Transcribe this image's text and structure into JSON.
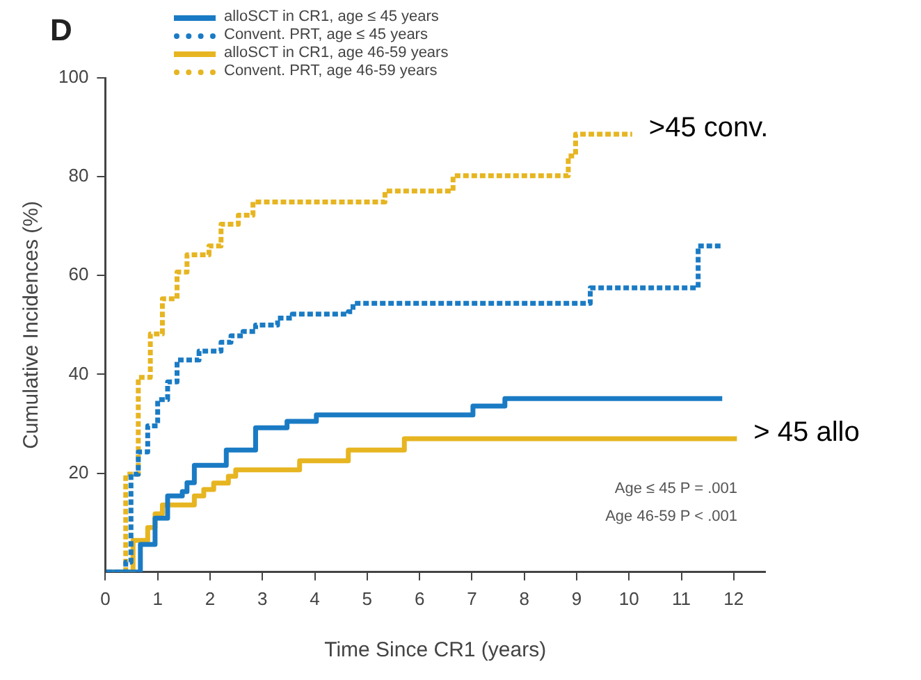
{
  "chart_data": {
    "type": "step",
    "xlabel": "Time Since CR1 (years)",
    "ylabel": "Cumulative Incidences (%)",
    "xlim": [
      0,
      12.6
    ],
    "xticks": [
      0,
      1,
      2,
      3,
      4,
      5,
      6,
      7,
      8,
      9,
      10,
      11,
      12
    ],
    "ylim": [
      0,
      100
    ],
    "yticks": [
      20,
      40,
      60,
      80,
      100
    ],
    "grid": false,
    "legend": "top left",
    "series": [
      {
        "name": "alloSCT in CR1, age ≤ 45 years",
        "color": "#1a7bc4",
        "line_style": "solid",
        "x": [
          0.02,
          0.67,
          0.95,
          1.19,
          1.47,
          1.56,
          1.7,
          2.31,
          2.87,
          3.47,
          4.03,
          7.02,
          7.63,
          11.78
        ],
        "values": [
          0,
          5.6,
          10.9,
          15.4,
          16.3,
          18.1,
          21.6,
          24.7,
          29.2,
          30.5,
          31.8,
          33.6,
          35.1,
          35.1
        ]
      },
      {
        "name": "Convent. PRT, age ≤ 45 years",
        "color": "#1a7bc4",
        "line_style": "dashed",
        "x": [
          0.02,
          0.39,
          0.49,
          0.63,
          0.81,
          1.0,
          1.19,
          1.37,
          1.79,
          2.21,
          2.4,
          2.63,
          2.87,
          3.29,
          3.57,
          4.64,
          4.73,
          9.26,
          11.32,
          11.78
        ],
        "values": [
          0,
          2,
          19.8,
          24.3,
          29.6,
          34.9,
          38.5,
          42.9,
          44.7,
          46.5,
          47.8,
          48.7,
          50,
          51.4,
          52.2,
          52.7,
          54.4,
          57.5,
          66,
          66
        ]
      },
      {
        "name": "alloSCT in CR1, age 46-59 years",
        "color": "#e6b521",
        "line_style": "solid",
        "x": [
          0.16,
          0.53,
          0.81,
          0.95,
          1.09,
          1.7,
          1.88,
          2.07,
          2.35,
          2.49,
          3.71,
          4.64,
          5.71,
          12.06
        ],
        "values": [
          0,
          6.4,
          9,
          11.8,
          13.6,
          15.4,
          16.7,
          18,
          19.4,
          20.7,
          22.5,
          24.7,
          27,
          27
        ]
      },
      {
        "name": "Convent. PRT, age 46-59 years",
        "color": "#e6b521",
        "line_style": "dashed",
        "x": [
          0.06,
          0.39,
          0.63,
          0.86,
          1.09,
          1.37,
          1.56,
          1.98,
          2.21,
          2.54,
          2.82,
          5.34,
          6.64,
          8.84,
          8.98,
          10.06
        ],
        "values": [
          0,
          19.8,
          39.4,
          48.2,
          55.3,
          60.7,
          64.2,
          66,
          70.4,
          72.2,
          74.9,
          77.1,
          80.2,
          84.2,
          88.6,
          88.6
        ]
      }
    ],
    "annotations": [
      "D",
      {
        "text": ">45 conv.",
        "x": 10.06,
        "y": 88.6
      },
      {
        "text": "> 45 allo",
        "x": 12.06,
        "y": 27
      },
      "Age ≤ 45 P = .001",
      "Age 46-59 P < .001"
    ]
  }
}
